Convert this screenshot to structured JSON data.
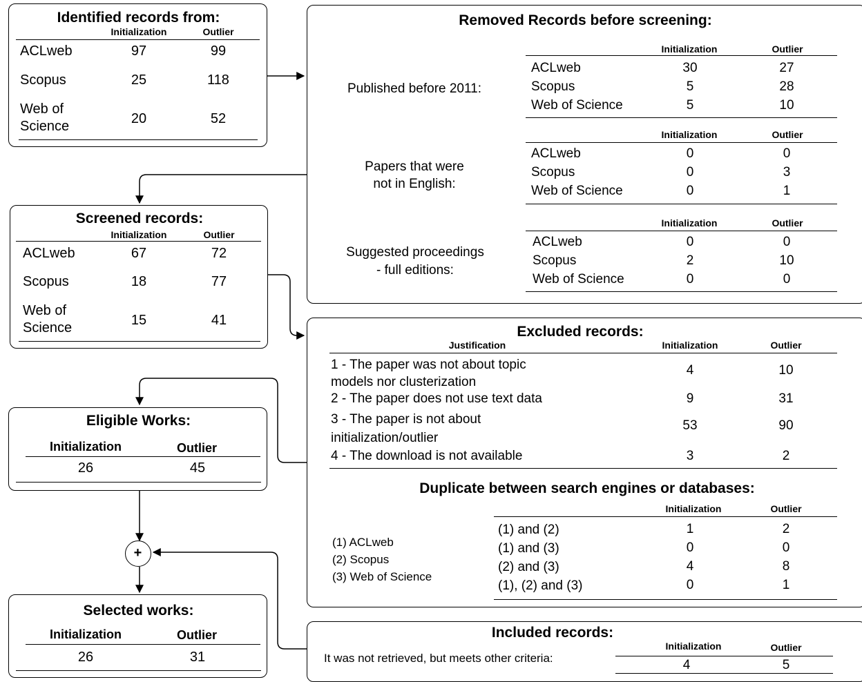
{
  "identified": {
    "title": "Identified records from:",
    "headers": [
      "Initialization",
      "Outlier"
    ],
    "rows": [
      {
        "source": "ACLweb",
        "init": "97",
        "outlier": "99"
      },
      {
        "source": "Scopus",
        "init": "25",
        "outlier": "118"
      },
      {
        "source": "Web of Science",
        "source_lines": [
          "Web of",
          "Science"
        ],
        "init": "20",
        "outlier": "52"
      }
    ]
  },
  "screened": {
    "title": "Screened records:",
    "headers": [
      "Initialization",
      "Outlier"
    ],
    "rows": [
      {
        "source": "ACLweb",
        "init": "67",
        "outlier": "72"
      },
      {
        "source": "Scopus",
        "init": "18",
        "outlier": "77"
      },
      {
        "source": "Web of Science",
        "source_lines": [
          "Web of",
          "Science"
        ],
        "init": "15",
        "outlier": "41"
      }
    ]
  },
  "eligible": {
    "title": "Eligible Works:",
    "headers": [
      "Initialization",
      "Outlier"
    ],
    "values": [
      "26",
      "45"
    ]
  },
  "selected": {
    "title": "Selected works:",
    "headers": [
      "Initialization",
      "Outlier"
    ],
    "values": [
      "26",
      "31"
    ]
  },
  "combine_symbol": "+",
  "removed": {
    "title": "Removed Records before screening:",
    "headers": [
      "Initialization",
      "Outlier"
    ],
    "groups": [
      {
        "label_lines": [
          "Published before 2011:"
        ],
        "rows": [
          {
            "source": "ACLweb",
            "init": "30",
            "outlier": "27"
          },
          {
            "source": "Scopus",
            "init": "5",
            "outlier": "28"
          },
          {
            "source": "Web of Science",
            "init": "5",
            "outlier": "10"
          }
        ]
      },
      {
        "label_lines": [
          "Papers that were",
          "not in English:"
        ],
        "rows": [
          {
            "source": "ACLweb",
            "init": "0",
            "outlier": "0"
          },
          {
            "source": "Scopus",
            "init": "0",
            "outlier": "3"
          },
          {
            "source": "Web of Science",
            "init": "0",
            "outlier": "1"
          }
        ]
      },
      {
        "label_lines": [
          "Suggested proceedings",
          "- full editions:"
        ],
        "rows": [
          {
            "source": "ACLweb",
            "init": "0",
            "outlier": "0"
          },
          {
            "source": "Scopus",
            "init": "2",
            "outlier": "10"
          },
          {
            "source": "Web of Science",
            "init": "0",
            "outlier": "0"
          }
        ]
      }
    ]
  },
  "excluded": {
    "title": "Excluded records:",
    "headers": [
      "Justification",
      "Initialization",
      "Outlier"
    ],
    "rows": [
      {
        "lines": [
          "1 - The paper was not about topic",
          "models nor clusterization"
        ],
        "init": "4",
        "outlier": "10"
      },
      {
        "lines": [
          "2 - The paper does not use text data"
        ],
        "init": "9",
        "outlier": "31"
      },
      {
        "lines": [
          "3 - The paper is not about",
          "initialization/outlier"
        ],
        "init": "53",
        "outlier": "90"
      },
      {
        "lines": [
          "4 - The download is not available"
        ],
        "init": "3",
        "outlier": "2"
      }
    ],
    "duplicate": {
      "title": "Duplicate between search engines or databases:",
      "legend": [
        "(1) ACLweb",
        "(2) Scopus",
        "(3) Web of Science"
      ],
      "headers": [
        "Initialization",
        "Outlier"
      ],
      "rows": [
        {
          "pair": "(1) and (2)",
          "init": "1",
          "outlier": "2"
        },
        {
          "pair": "(1) and (3)",
          "init": "0",
          "outlier": "0"
        },
        {
          "pair": "(2) and (3)",
          "init": "4",
          "outlier": "8"
        },
        {
          "pair": "(1), (2) and (3)",
          "init": "0",
          "outlier": "1"
        }
      ]
    }
  },
  "included": {
    "title": "Included records:",
    "label": "It was not retrieved, but meets other criteria:",
    "headers": [
      "Initialization",
      "Outlier"
    ],
    "values": [
      "4",
      "5"
    ]
  }
}
